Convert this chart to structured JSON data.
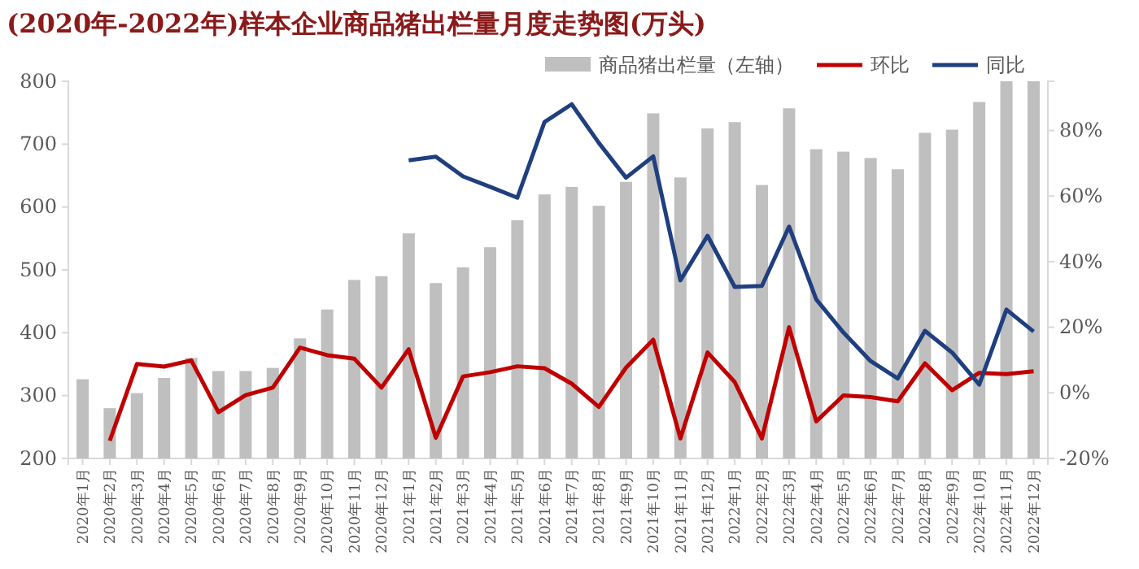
{
  "chart_data": {
    "type": "bar",
    "title": "(2020年-2022年)样本企业商品猪出栏量月度走势图(万头)",
    "categories": [
      "2020年1月",
      "2020年2月",
      "2020年3月",
      "2020年4月",
      "2020年5月",
      "2020年6月",
      "2020年7月",
      "2020年8月",
      "2020年9月",
      "2020年10月",
      "2020年11月",
      "2020年12月",
      "2021年1月",
      "2021年2月",
      "2021年3月",
      "2021年4月",
      "2021年5月",
      "2021年6月",
      "2021年7月",
      "2021年8月",
      "2021年9月",
      "2021年10月",
      "2021年11月",
      "2021年12月",
      "2022年1月",
      "2022年2月",
      "2022年3月",
      "2022年4月",
      "2022年5月",
      "2022年6月",
      "2022年7月",
      "2022年8月",
      "2022年9月",
      "2022年10月",
      "2022年11月",
      "2022年12月"
    ],
    "series": [
      {
        "name": "商品猪出栏量（左轴）",
        "color": "#bfbfbf",
        "values": [
          326,
          280,
          304,
          328,
          360,
          339,
          339,
          344,
          391,
          437,
          484,
          490,
          558,
          479,
          504,
          536,
          579,
          620,
          632,
          602,
          640,
          749,
          647,
          725,
          735,
          635,
          757,
          692,
          688,
          678,
          660,
          718,
          723,
          767,
          800,
          800
        ]
      },
      {
        "name": "环比",
        "type": "line",
        "axis": "y2",
        "color": "#c00000",
        "values": [
          null,
          -14.6,
          8.8,
          8.0,
          9.9,
          -5.9,
          -0.7,
          1.6,
          13.8,
          11.5,
          10.4,
          1.6,
          13.3,
          -13.7,
          5.0,
          6.3,
          8.1,
          7.5,
          2.8,
          -4.3,
          7.7,
          16.2,
          -13.9,
          12.3,
          3.3,
          -13.9,
          20.0,
          -8.7,
          -0.8,
          -1.3,
          -2.6,
          9.0,
          0.8,
          6.1,
          5.7,
          6.6
        ]
      },
      {
        "name": "同比",
        "type": "line",
        "axis": "y2",
        "color": "#1f3f7f",
        "values": [
          null,
          null,
          null,
          null,
          null,
          null,
          null,
          null,
          null,
          null,
          null,
          null,
          70.9,
          72.0,
          66.0,
          62.8,
          59.5,
          82.6,
          88.0,
          76.2,
          65.6,
          72.1,
          34.3,
          47.9,
          32.3,
          32.6,
          50.7,
          28.5,
          18.4,
          9.7,
          4.4,
          18.9,
          12.3,
          2.5,
          25.4,
          18.7
        ]
      }
    ],
    "ylim": [
      200,
      800
    ],
    "yticks": [
      200,
      300,
      400,
      500,
      600,
      700,
      800
    ],
    "y2lim": [
      -20,
      95
    ],
    "y2ticks": [
      {
        "value": -20,
        "label": "-20%"
      },
      {
        "value": 0,
        "label": "0%"
      },
      {
        "value": 20,
        "label": "20%"
      },
      {
        "value": 40,
        "label": "40%"
      },
      {
        "value": 60,
        "label": "60%"
      },
      {
        "value": 80,
        "label": "80%"
      }
    ],
    "grid": false,
    "legend": "top right",
    "line_style": "solid",
    "marker": "none"
  }
}
